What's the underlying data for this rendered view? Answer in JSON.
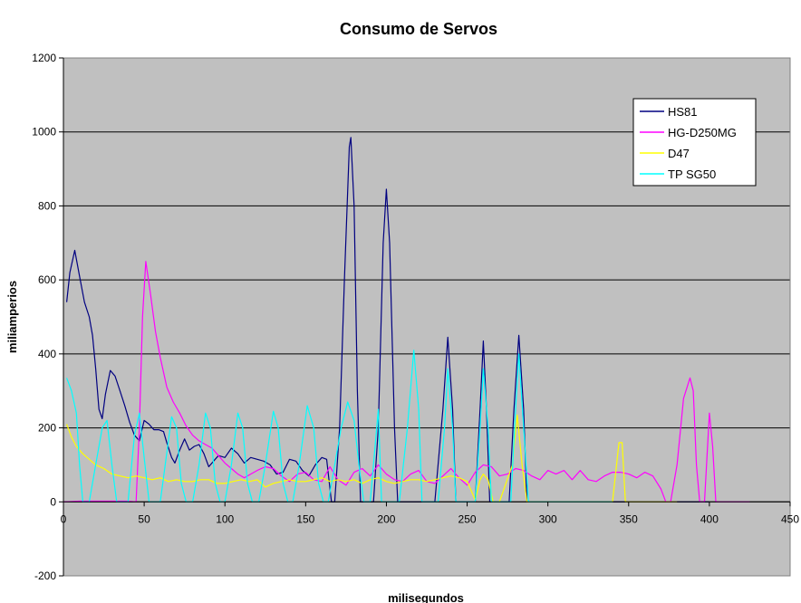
{
  "chart_data": {
    "type": "line",
    "title": "Consumo de Servos",
    "xlabel": "milisegundos",
    "ylabel": "miliamperios",
    "xlim": [
      0,
      450
    ],
    "ylim": [
      -200,
      1200
    ],
    "xticks": [
      0,
      50,
      100,
      150,
      200,
      250,
      300,
      350,
      400,
      450
    ],
    "yticks": [
      -200,
      0,
      200,
      400,
      600,
      800,
      1000,
      1200
    ],
    "grid": "horizontal",
    "plot_background": "#c0c0c0",
    "legend_position": "top-right",
    "series": [
      {
        "name": "HS81",
        "color": "#000080",
        "points": [
          [
            2,
            540
          ],
          [
            4,
            620
          ],
          [
            7,
            680
          ],
          [
            10,
            610
          ],
          [
            13,
            540
          ],
          [
            16,
            500
          ],
          [
            18,
            450
          ],
          [
            20,
            360
          ],
          [
            22,
            250
          ],
          [
            24,
            225
          ],
          [
            26,
            290
          ],
          [
            29,
            355
          ],
          [
            32,
            340
          ],
          [
            35,
            300
          ],
          [
            38,
            260
          ],
          [
            41,
            215
          ],
          [
            44,
            180
          ],
          [
            47,
            165
          ],
          [
            50,
            220
          ],
          [
            53,
            210
          ],
          [
            56,
            195
          ],
          [
            59,
            195
          ],
          [
            62,
            190
          ],
          [
            64,
            160
          ],
          [
            67,
            120
          ],
          [
            69,
            105
          ],
          [
            72,
            140
          ],
          [
            75,
            170
          ],
          [
            78,
            140
          ],
          [
            81,
            150
          ],
          [
            84,
            155
          ],
          [
            87,
            130
          ],
          [
            90,
            95
          ],
          [
            93,
            110
          ],
          [
            96,
            125
          ],
          [
            100,
            120
          ],
          [
            104,
            145
          ],
          [
            108,
            130
          ],
          [
            112,
            105
          ],
          [
            116,
            120
          ],
          [
            120,
            115
          ],
          [
            124,
            110
          ],
          [
            128,
            100
          ],
          [
            132,
            75
          ],
          [
            136,
            80
          ],
          [
            140,
            115
          ],
          [
            144,
            110
          ],
          [
            148,
            85
          ],
          [
            152,
            70
          ],
          [
            156,
            100
          ],
          [
            160,
            120
          ],
          [
            163,
            115
          ],
          [
            166,
            0
          ],
          [
            168,
            0
          ],
          [
            171,
            200
          ],
          [
            174,
            600
          ],
          [
            177,
            960
          ],
          [
            178,
            985
          ],
          [
            180,
            800
          ],
          [
            182,
            300
          ],
          [
            184,
            0
          ],
          [
            186,
            0
          ],
          [
            188,
            0
          ],
          [
            192,
            0
          ],
          [
            195,
            200
          ],
          [
            198,
            700
          ],
          [
            200,
            845
          ],
          [
            202,
            700
          ],
          [
            205,
            200
          ],
          [
            207,
            0
          ],
          [
            210,
            0
          ],
          [
            230,
            0
          ],
          [
            235,
            250
          ],
          [
            238,
            445
          ],
          [
            241,
            250
          ],
          [
            243,
            0
          ],
          [
            255,
            0
          ],
          [
            258,
            250
          ],
          [
            260,
            435
          ],
          [
            262,
            250
          ],
          [
            264,
            0
          ],
          [
            276,
            0
          ],
          [
            279,
            250
          ],
          [
            282,
            450
          ],
          [
            285,
            250
          ],
          [
            287,
            0
          ],
          [
            320,
            0
          ],
          [
            360,
            0
          ],
          [
            380,
            0
          ],
          [
            395,
            0
          ],
          [
            400,
            0
          ]
        ]
      },
      {
        "name": "HG-D250MG",
        "color": "#ff00ff",
        "points": [
          [
            0,
            0
          ],
          [
            10,
            2
          ],
          [
            20,
            2
          ],
          [
            30,
            2
          ],
          [
            40,
            2
          ],
          [
            45,
            0
          ],
          [
            47,
            200
          ],
          [
            49,
            500
          ],
          [
            51,
            650
          ],
          [
            54,
            560
          ],
          [
            57,
            460
          ],
          [
            60,
            390
          ],
          [
            64,
            310
          ],
          [
            68,
            270
          ],
          [
            72,
            240
          ],
          [
            76,
            205
          ],
          [
            80,
            180
          ],
          [
            84,
            165
          ],
          [
            88,
            155
          ],
          [
            92,
            145
          ],
          [
            96,
            125
          ],
          [
            100,
            105
          ],
          [
            104,
            90
          ],
          [
            108,
            75
          ],
          [
            112,
            65
          ],
          [
            116,
            75
          ],
          [
            120,
            85
          ],
          [
            125,
            95
          ],
          [
            130,
            90
          ],
          [
            135,
            70
          ],
          [
            140,
            55
          ],
          [
            145,
            75
          ],
          [
            150,
            80
          ],
          [
            155,
            60
          ],
          [
            160,
            55
          ],
          [
            165,
            95
          ],
          [
            170,
            60
          ],
          [
            175,
            45
          ],
          [
            180,
            80
          ],
          [
            185,
            90
          ],
          [
            190,
            70
          ],
          [
            195,
            100
          ],
          [
            200,
            75
          ],
          [
            205,
            60
          ],
          [
            210,
            55
          ],
          [
            215,
            75
          ],
          [
            220,
            85
          ],
          [
            225,
            55
          ],
          [
            230,
            50
          ],
          [
            235,
            70
          ],
          [
            240,
            90
          ],
          [
            245,
            65
          ],
          [
            250,
            45
          ],
          [
            255,
            80
          ],
          [
            260,
            100
          ],
          [
            265,
            95
          ],
          [
            270,
            70
          ],
          [
            275,
            75
          ],
          [
            280,
            90
          ],
          [
            285,
            85
          ],
          [
            290,
            70
          ],
          [
            295,
            60
          ],
          [
            300,
            85
          ],
          [
            305,
            75
          ],
          [
            310,
            85
          ],
          [
            315,
            60
          ],
          [
            320,
            85
          ],
          [
            325,
            60
          ],
          [
            330,
            55
          ],
          [
            335,
            70
          ],
          [
            340,
            80
          ],
          [
            345,
            80
          ],
          [
            350,
            75
          ],
          [
            355,
            65
          ],
          [
            360,
            80
          ],
          [
            365,
            70
          ],
          [
            370,
            35
          ],
          [
            373,
            0
          ],
          [
            376,
            0
          ],
          [
            380,
            100
          ],
          [
            384,
            280
          ],
          [
            388,
            335
          ],
          [
            390,
            300
          ],
          [
            392,
            100
          ],
          [
            394,
            0
          ],
          [
            397,
            0
          ],
          [
            400,
            240
          ],
          [
            402,
            150
          ],
          [
            404,
            0
          ],
          [
            410,
            0
          ],
          [
            420,
            0
          ],
          [
            425,
            0
          ]
        ]
      },
      {
        "name": "D47",
        "color": "#ffff00",
        "points": [
          [
            2,
            210
          ],
          [
            5,
            175
          ],
          [
            8,
            150
          ],
          [
            12,
            130
          ],
          [
            16,
            115
          ],
          [
            20,
            100
          ],
          [
            25,
            90
          ],
          [
            30,
            75
          ],
          [
            35,
            70
          ],
          [
            40,
            65
          ],
          [
            45,
            70
          ],
          [
            50,
            65
          ],
          [
            55,
            60
          ],
          [
            60,
            65
          ],
          [
            65,
            55
          ],
          [
            70,
            60
          ],
          [
            75,
            55
          ],
          [
            80,
            55
          ],
          [
            85,
            60
          ],
          [
            90,
            60
          ],
          [
            95,
            50
          ],
          [
            100,
            50
          ],
          [
            105,
            55
          ],
          [
            110,
            60
          ],
          [
            115,
            55
          ],
          [
            120,
            60
          ],
          [
            125,
            40
          ],
          [
            130,
            50
          ],
          [
            135,
            55
          ],
          [
            140,
            60
          ],
          [
            145,
            55
          ],
          [
            150,
            55
          ],
          [
            155,
            60
          ],
          [
            160,
            65
          ],
          [
            165,
            55
          ],
          [
            170,
            60
          ],
          [
            175,
            55
          ],
          [
            180,
            60
          ],
          [
            185,
            50
          ],
          [
            190,
            60
          ],
          [
            195,
            65
          ],
          [
            200,
            55
          ],
          [
            205,
            50
          ],
          [
            210,
            55
          ],
          [
            215,
            60
          ],
          [
            220,
            60
          ],
          [
            225,
            55
          ],
          [
            230,
            60
          ],
          [
            235,
            65
          ],
          [
            240,
            70
          ],
          [
            245,
            65
          ],
          [
            250,
            55
          ],
          [
            255,
            5
          ],
          [
            258,
            60
          ],
          [
            260,
            75
          ],
          [
            263,
            60
          ],
          [
            266,
            0
          ],
          [
            270,
            0
          ],
          [
            278,
            100
          ],
          [
            281,
            235
          ],
          [
            284,
            100
          ],
          [
            287,
            0
          ],
          [
            300,
            0
          ],
          [
            340,
            0
          ],
          [
            344,
            160
          ],
          [
            346,
            160
          ],
          [
            348,
            0
          ],
          [
            360,
            0
          ],
          [
            380,
            0
          ]
        ]
      },
      {
        "name": "TP SG50",
        "color": "#00ffff",
        "points": [
          [
            2,
            335
          ],
          [
            5,
            300
          ],
          [
            8,
            240
          ],
          [
            10,
            100
          ],
          [
            12,
            0
          ],
          [
            14,
            0
          ],
          [
            16,
            0
          ],
          [
            20,
            100
          ],
          [
            24,
            200
          ],
          [
            27,
            220
          ],
          [
            30,
            100
          ],
          [
            33,
            0
          ],
          [
            36,
            0
          ],
          [
            40,
            0
          ],
          [
            44,
            180
          ],
          [
            47,
            240
          ],
          [
            50,
            120
          ],
          [
            53,
            0
          ],
          [
            56,
            0
          ],
          [
            60,
            0
          ],
          [
            63,
            100
          ],
          [
            67,
            230
          ],
          [
            70,
            200
          ],
          [
            73,
            50
          ],
          [
            76,
            0
          ],
          [
            80,
            0
          ],
          [
            84,
            100
          ],
          [
            88,
            240
          ],
          [
            91,
            200
          ],
          [
            94,
            50
          ],
          [
            97,
            0
          ],
          [
            100,
            0
          ],
          [
            104,
            100
          ],
          [
            108,
            240
          ],
          [
            111,
            200
          ],
          [
            114,
            50
          ],
          [
            117,
            0
          ],
          [
            121,
            0
          ],
          [
            125,
            100
          ],
          [
            130,
            245
          ],
          [
            133,
            200
          ],
          [
            136,
            50
          ],
          [
            139,
            0
          ],
          [
            142,
            0
          ],
          [
            146,
            100
          ],
          [
            151,
            260
          ],
          [
            155,
            200
          ],
          [
            158,
            50
          ],
          [
            161,
            0
          ],
          [
            164,
            0
          ],
          [
            168,
            100
          ],
          [
            172,
            200
          ],
          [
            176,
            270
          ],
          [
            180,
            220
          ],
          [
            183,
            100
          ],
          [
            186,
            0
          ],
          [
            190,
            0
          ],
          [
            195,
            250
          ],
          [
            197,
            0
          ],
          [
            208,
            0
          ],
          [
            213,
            200
          ],
          [
            217,
            410
          ],
          [
            220,
            250
          ],
          [
            222,
            0
          ],
          [
            232,
            0
          ],
          [
            236,
            200
          ],
          [
            238,
            360
          ],
          [
            241,
            200
          ],
          [
            243,
            0
          ],
          [
            255,
            0
          ],
          [
            258,
            200
          ],
          [
            260,
            360
          ],
          [
            263,
            200
          ],
          [
            265,
            0
          ],
          [
            277,
            0
          ],
          [
            280,
            250
          ],
          [
            282,
            400
          ],
          [
            285,
            200
          ],
          [
            288,
            0
          ],
          [
            300,
            0
          ],
          [
            330,
            0
          ],
          [
            340,
            0
          ]
        ]
      }
    ]
  }
}
